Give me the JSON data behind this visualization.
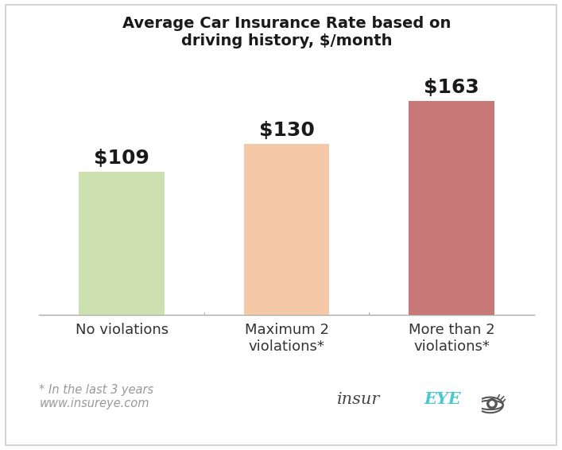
{
  "title": "Average Car Insurance Rate based on\ndriving history, $/month",
  "categories": [
    "No violations",
    "Maximum 2\nviolations*",
    "More than 2\nviolations*"
  ],
  "values": [
    109,
    130,
    163
  ],
  "bar_colors": [
    "#cce0b0",
    "#f5c9a8",
    "#c97878"
  ],
  "value_labels": [
    "$109",
    "$130",
    "$163"
  ],
  "bar_width": 0.52,
  "ylim": [
    0,
    195
  ],
  "background_color": "#ffffff",
  "title_fontsize": 14,
  "label_fontsize": 18,
  "tick_fontsize": 13,
  "footnote_text": "* In the last 3 years\nwww.insureye.com",
  "footnote_color": "#999999",
  "footnote_fontsize": 10.5,
  "insur_color": "#444444",
  "eye_color": "#4ec8d0",
  "logo_fontsize": 15,
  "border_color": "#cccccc"
}
